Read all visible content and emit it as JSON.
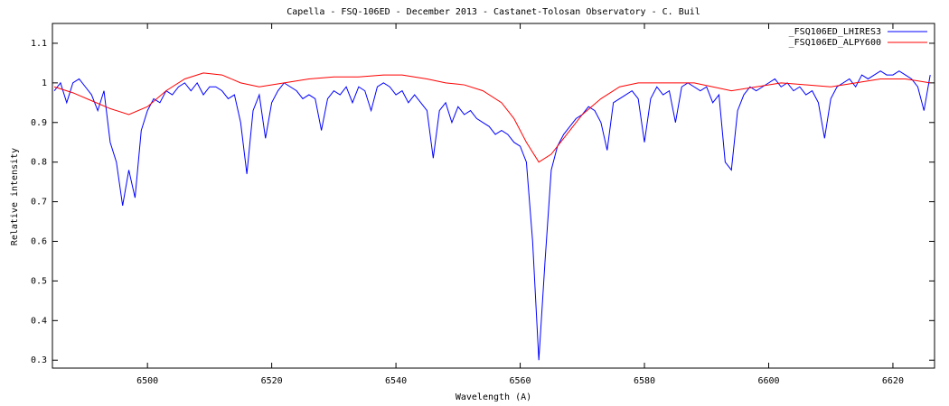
{
  "chart_data": {
    "type": "line",
    "title": "Capella - FSQ-106ED - December 2013 - Castanet-Tolosan Observatory - C. Buil",
    "x_label": "Wavelength (A)",
    "y_label": "Relative intensity",
    "xlim": [
      6484.7,
      6626.7
    ],
    "ylim": [
      0.28,
      1.15
    ],
    "xticks": [
      6500,
      6520,
      6540,
      6560,
      6580,
      6600,
      6620
    ],
    "yticks": [
      0.3,
      0.4,
      0.5,
      0.6,
      0.7,
      0.8,
      0.9,
      1,
      1.1
    ],
    "legend": "upper right",
    "series": [
      {
        "name": "_FSQ106ED_LHIRES3",
        "color": "#0000ff",
        "x": [
          6485,
          6486,
          6487,
          6488,
          6489,
          6490,
          6491,
          6492,
          6493,
          6494,
          6495,
          6496,
          6497,
          6498,
          6499,
          6500,
          6501,
          6502,
          6503,
          6504,
          6505,
          6506,
          6507,
          6508,
          6509,
          6510,
          6511,
          6512,
          6513,
          6514,
          6515,
          6516,
          6517,
          6518,
          6519,
          6520,
          6521,
          6522,
          6523,
          6524,
          6525,
          6526,
          6527,
          6528,
          6529,
          6530,
          6531,
          6532,
          6533,
          6534,
          6535,
          6536,
          6537,
          6538,
          6539,
          6540,
          6541,
          6542,
          6543,
          6544,
          6545,
          6546,
          6547,
          6548,
          6549,
          6550,
          6551,
          6552,
          6553,
          6554,
          6555,
          6556,
          6557,
          6558,
          6559,
          6560,
          6561,
          6562,
          6563,
          6564,
          6565,
          6566,
          6567,
          6568,
          6569,
          6570,
          6571,
          6572,
          6573,
          6574,
          6575,
          6576,
          6577,
          6578,
          6579,
          6580,
          6581,
          6582,
          6583,
          6584,
          6585,
          6586,
          6587,
          6588,
          6589,
          6590,
          6591,
          6592,
          6593,
          6594,
          6595,
          6596,
          6597,
          6598,
          6599,
          6600,
          6601,
          6602,
          6603,
          6604,
          6605,
          6606,
          6607,
          6608,
          6609,
          6610,
          6611,
          6612,
          6613,
          6614,
          6615,
          6616,
          6617,
          6618,
          6619,
          6620,
          6621,
          6622,
          6623,
          6624,
          6625,
          6626
        ],
        "values": [
          0.98,
          1.0,
          0.95,
          1.0,
          1.01,
          0.99,
          0.97,
          0.93,
          0.98,
          0.85,
          0.8,
          0.69,
          0.78,
          0.71,
          0.88,
          0.93,
          0.96,
          0.95,
          0.98,
          0.97,
          0.99,
          1.0,
          0.98,
          1.0,
          0.97,
          0.99,
          0.99,
          0.98,
          0.96,
          0.97,
          0.9,
          0.77,
          0.93,
          0.97,
          0.86,
          0.95,
          0.98,
          1.0,
          0.99,
          0.98,
          0.96,
          0.97,
          0.96,
          0.88,
          0.96,
          0.98,
          0.97,
          0.99,
          0.95,
          0.99,
          0.98,
          0.93,
          0.99,
          1.0,
          0.99,
          0.97,
          0.98,
          0.95,
          0.97,
          0.95,
          0.93,
          0.81,
          0.93,
          0.95,
          0.9,
          0.94,
          0.92,
          0.93,
          0.91,
          0.9,
          0.89,
          0.87,
          0.88,
          0.87,
          0.85,
          0.84,
          0.8,
          0.6,
          0.3,
          0.55,
          0.78,
          0.84,
          0.87,
          0.89,
          0.91,
          0.92,
          0.94,
          0.93,
          0.9,
          0.83,
          0.95,
          0.96,
          0.97,
          0.98,
          0.96,
          0.85,
          0.96,
          0.99,
          0.97,
          0.98,
          0.9,
          0.99,
          1.0,
          0.99,
          0.98,
          0.99,
          0.95,
          0.97,
          0.8,
          0.78,
          0.93,
          0.97,
          0.99,
          0.98,
          0.99,
          1.0,
          1.01,
          0.99,
          1.0,
          0.98,
          0.99,
          0.97,
          0.98,
          0.95,
          0.86,
          0.96,
          0.99,
          1.0,
          1.01,
          0.99,
          1.02,
          1.01,
          1.02,
          1.03,
          1.02,
          1.02,
          1.03,
          1.02,
          1.01,
          0.99,
          0.93,
          1.02
        ]
      },
      {
        "name": "_FSQ106ED_ALPY600",
        "color": "#ff0000",
        "x": [
          6485,
          6488,
          6491,
          6494,
          6497,
          6500,
          6503,
          6506,
          6509,
          6512,
          6515,
          6518,
          6522,
          6526,
          6530,
          6534,
          6538,
          6541,
          6545,
          6548,
          6551,
          6554,
          6557,
          6559,
          6561,
          6563,
          6565,
          6567,
          6570,
          6573,
          6576,
          6579,
          6584,
          6588,
          6591,
          6594,
          6598,
          6602,
          6606,
          6610,
          6614,
          6618,
          6622,
          6626
        ],
        "values": [
          0.99,
          0.975,
          0.955,
          0.935,
          0.92,
          0.94,
          0.98,
          1.01,
          1.025,
          1.02,
          1.0,
          0.99,
          1.0,
          1.01,
          1.015,
          1.015,
          1.02,
          1.02,
          1.01,
          1.0,
          0.995,
          0.98,
          0.95,
          0.91,
          0.85,
          0.8,
          0.82,
          0.86,
          0.92,
          0.96,
          0.99,
          1.0,
          1.0,
          1.0,
          0.99,
          0.98,
          0.99,
          1.0,
          0.995,
          0.99,
          1.0,
          1.01,
          1.01,
          1.0
        ]
      }
    ]
  }
}
